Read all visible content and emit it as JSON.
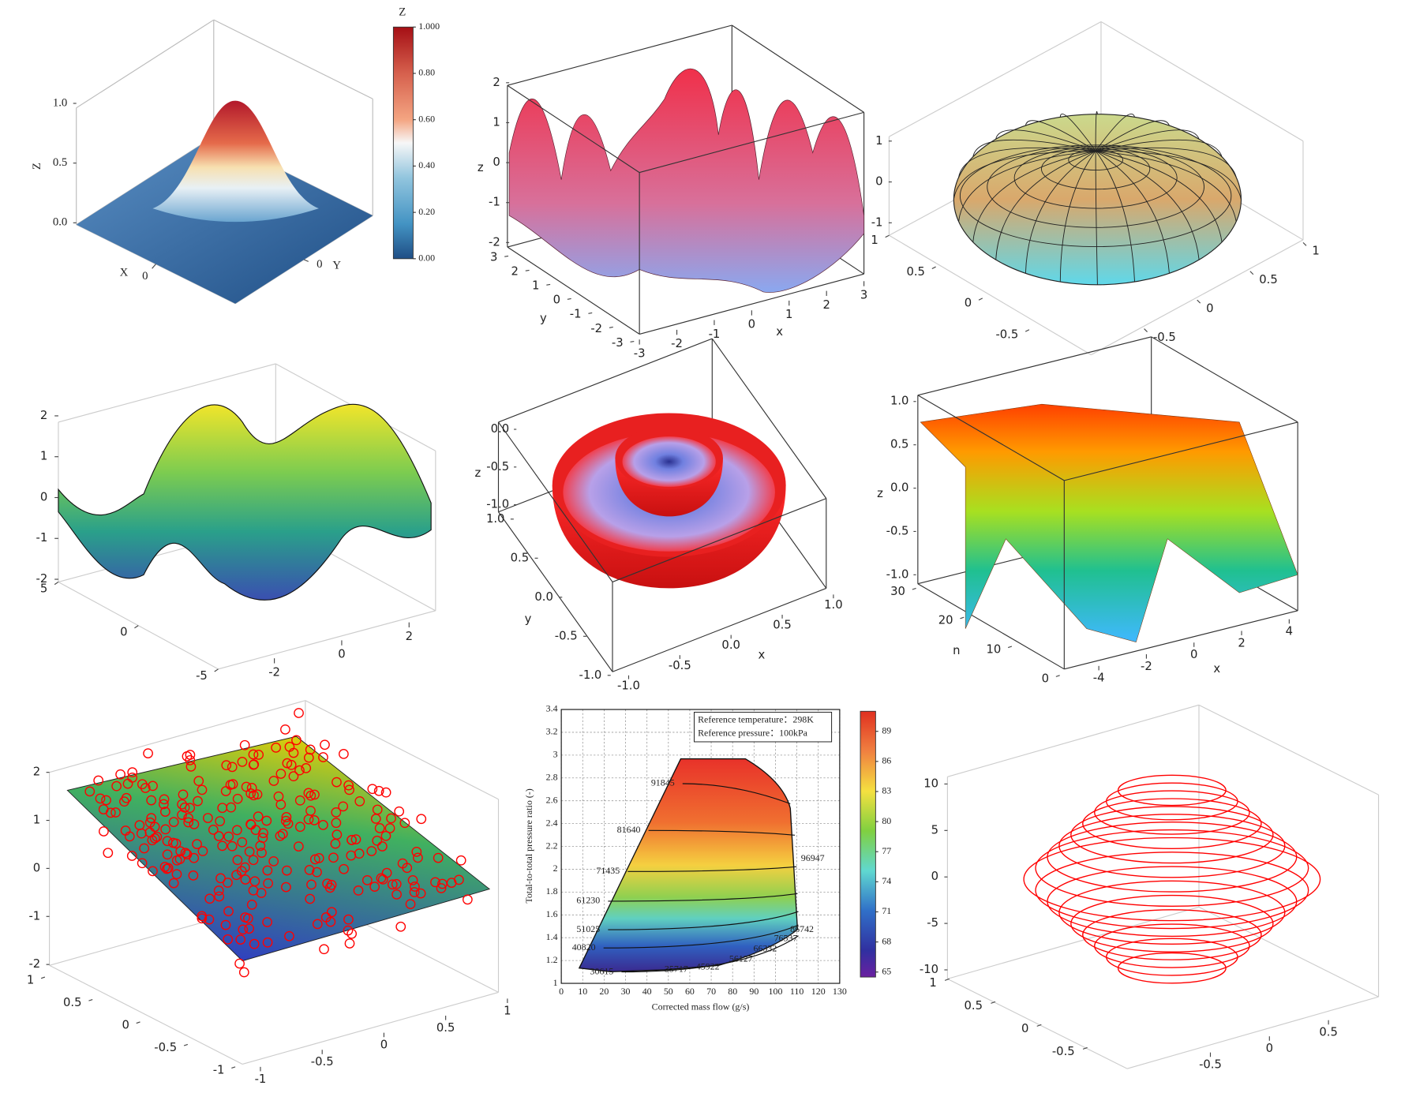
{
  "chart_data": [
    {
      "type": "surface3d",
      "xlabel": "X",
      "ylabel": "Y",
      "zlabel": "Z",
      "xlim": [
        -2,
        2
      ],
      "xticks": [
        0
      ],
      "ylim": [
        -2,
        2
      ],
      "yticks": [
        0
      ],
      "zlim": [
        0,
        1
      ],
      "zticks": [
        {
          "value": 0,
          "label": "0.0"
        },
        0.5,
        {
          "value": 1,
          "label": "1.0"
        }
      ],
      "colorbar": {
        "title": "Z",
        "lim": [
          0,
          1
        ],
        "ticks": [
          {
            "value": 0,
            "label": "0.00"
          },
          {
            "value": 0.2,
            "label": "0.20"
          },
          {
            "value": 0.4,
            "label": "0.40"
          },
          {
            "value": 0.6,
            "label": "0.60"
          },
          {
            "value": 0.8,
            "label": "0.80"
          },
          {
            "value": 1,
            "label": "1.000"
          }
        ]
      }
    },
    {
      "type": "surface3d",
      "xlabel": "x",
      "ylabel": "y",
      "zlabel": "z",
      "xlim": [
        -3,
        3
      ],
      "xticks": [
        -3,
        -2,
        -1,
        0,
        1,
        2,
        3
      ],
      "ylim": [
        -3,
        3
      ],
      "yticks": [
        -3,
        -2,
        -1,
        0,
        1,
        2,
        3
      ],
      "zlim": [
        -2,
        2
      ],
      "zticks": [
        -2,
        -1,
        0,
        1,
        2
      ]
    },
    {
      "type": "surface3d",
      "xlim": [
        -1,
        1
      ],
      "xticks": [
        -0.5,
        0,
        0.5,
        1
      ],
      "ylim": [
        -1,
        1
      ],
      "yticks": [
        -0.5,
        0,
        0.5,
        1
      ],
      "zlim": [
        -1,
        1
      ],
      "zticks": [
        -1,
        0,
        1
      ]
    },
    {
      "type": "surface3d",
      "xlim": [
        -3,
        3
      ],
      "xticks": [
        -2,
        0,
        2
      ],
      "ylim": [
        -5,
        5
      ],
      "yticks": [
        -5,
        0,
        5
      ],
      "zlim": [
        -2,
        2
      ],
      "zticks": [
        -2,
        -1,
        0,
        1,
        2
      ]
    },
    {
      "type": "surface3d",
      "xlabel": "x",
      "ylabel": "y",
      "zlabel": "z",
      "xlim": [
        -1,
        1
      ],
      "xticks": [
        {
          "value": -1,
          "label": "-1.0"
        },
        -0.5,
        {
          "value": 0,
          "label": "0.0"
        },
        0.5,
        {
          "value": 1,
          "label": "1.0"
        }
      ],
      "ylim": [
        -1,
        1
      ],
      "yticks": [
        {
          "value": -1,
          "label": "-1.0"
        },
        -0.5,
        {
          "value": 0,
          "label": "0.0"
        },
        0.5,
        {
          "value": 1,
          "label": "1.0"
        }
      ],
      "zlim": [
        -1,
        0
      ],
      "zticks": [
        {
          "value": -1,
          "label": "-1.0"
        },
        -0.5,
        {
          "value": 0,
          "label": "0.0"
        }
      ]
    },
    {
      "type": "surface3d",
      "xlabel": "x",
      "ylabel": "n",
      "zlabel": "z",
      "xlim": [
        -5,
        5
      ],
      "xticks": [
        -4,
        -2,
        0,
        2,
        4
      ],
      "ylim": [
        0,
        30
      ],
      "yticks": [
        0,
        10,
        20,
        30
      ],
      "zlim": [
        -1,
        1
      ],
      "zticks": [
        {
          "value": -1,
          "label": "-1.0"
        },
        -0.5,
        {
          "value": 0,
          "label": "0.0"
        },
        0.5,
        {
          "value": 1,
          "label": "1.0"
        }
      ]
    },
    {
      "type": "scatter3d",
      "color": "#ff0000",
      "xlim": [
        -1,
        1
      ],
      "xticks": [
        -1,
        -0.5,
        0,
        0.5,
        1
      ],
      "ylim": [
        -1,
        1
      ],
      "yticks": [
        -1,
        -0.5,
        0,
        0.5,
        1
      ],
      "zlim": [
        -2,
        2
      ],
      "zticks": [
        -2,
        -1,
        0,
        1,
        2
      ]
    },
    {
      "type": "contour",
      "xlabel": "Corrected mass flow (g/s)",
      "ylabel": "Total-to-total pressure ratio (-)",
      "annotations": [
        "Reference temperature：298K",
        "Reference pressure：100kPa"
      ],
      "xlim": [
        0,
        130
      ],
      "xticks": [
        0,
        10,
        20,
        30,
        40,
        50,
        60,
        70,
        80,
        90,
        100,
        110,
        120,
        130
      ],
      "ylim": [
        1,
        3.4
      ],
      "yticks": [
        1,
        1.2,
        1.4,
        1.6,
        1.8,
        2,
        2.2,
        2.4,
        2.6,
        2.8,
        3,
        3.2,
        3.4
      ],
      "grid": true,
      "colorbar": {
        "lim": [
          64.5,
          91
        ],
        "ticks": [
          65,
          68,
          71,
          74,
          77,
          80,
          83,
          86,
          89
        ]
      },
      "speed_lines": [
        {
          "speed": 91845,
          "x": 47.4,
          "y": 2.75
        },
        {
          "speed": 81640,
          "x": 31.5,
          "y": 2.34
        },
        {
          "speed": 71435,
          "x": 21.8,
          "y": 1.98
        },
        {
          "speed": 61230,
          "x": 12.6,
          "y": 1.72
        },
        {
          "speed": 51025,
          "x": 12.6,
          "y": 1.47
        },
        {
          "speed": 40820,
          "x": 10.5,
          "y": 1.31
        },
        {
          "speed": 30615,
          "x": 18.9,
          "y": 1.1
        },
        {
          "speed": 35717,
          "x": 53.7,
          "y": 1.12
        },
        {
          "speed": 45922,
          "x": 68.4,
          "y": 1.14
        },
        {
          "speed": 56127,
          "x": 83.9,
          "y": 1.21
        },
        {
          "speed": 66332,
          "x": 95.2,
          "y": 1.3
        },
        {
          "speed": 76537,
          "x": 104.8,
          "y": 1.39
        },
        {
          "speed": 86742,
          "x": 112.4,
          "y": 1.47
        },
        {
          "speed": 96947,
          "x": 117.4,
          "y": 2.09
        }
      ]
    },
    {
      "type": "line3d",
      "color": "#ff0000",
      "xlim": [
        -1,
        1
      ],
      "xticks": [
        -0.5,
        0,
        0.5
      ],
      "ylim": [
        -1,
        1
      ],
      "yticks": [
        -0.5,
        0,
        0.5,
        1
      ],
      "zlim": [
        -10,
        10
      ],
      "zticks": [
        -10,
        -5,
        0,
        5,
        10
      ]
    }
  ]
}
